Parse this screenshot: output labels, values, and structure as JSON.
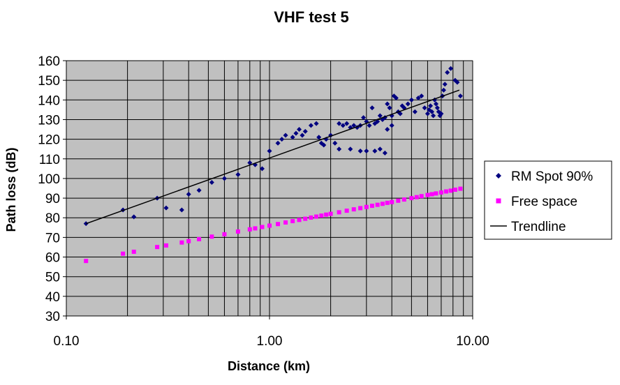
{
  "chart_data": {
    "type": "scatter",
    "title": "VHF test 5",
    "xlabel": "Distance (km)",
    "ylabel": "Path loss (dB)",
    "x_scale": "log",
    "xlim": [
      0.1,
      10
    ],
    "ylim": [
      30,
      160
    ],
    "x_ticks": [
      0.1,
      1,
      10
    ],
    "x_tick_labels": [
      "0.10",
      "1.00",
      "10.00"
    ],
    "y_ticks": [
      30,
      40,
      50,
      60,
      70,
      80,
      90,
      100,
      110,
      120,
      130,
      140,
      150,
      160
    ],
    "y_tick_labels": [
      "30",
      "40",
      "50",
      "60",
      "70",
      "80",
      "90",
      "100",
      "110",
      "120",
      "130",
      "140",
      "150",
      "160"
    ],
    "grid": true,
    "plot_background": "#c0c0c0",
    "legend_position": "right",
    "series": [
      {
        "name": "RM Spot 90%",
        "kind": "scatter",
        "marker": "diamond",
        "color": "#000080",
        "points": [
          [
            0.125,
            77
          ],
          [
            0.19,
            84
          ],
          [
            0.215,
            80.5
          ],
          [
            0.28,
            90
          ],
          [
            0.31,
            85
          ],
          [
            0.37,
            84
          ],
          [
            0.4,
            92
          ],
          [
            0.45,
            94
          ],
          [
            0.52,
            98
          ],
          [
            0.6,
            100
          ],
          [
            0.7,
            102
          ],
          [
            0.8,
            108
          ],
          [
            0.85,
            107
          ],
          [
            0.92,
            105
          ],
          [
            1.0,
            114
          ],
          [
            1.1,
            118
          ],
          [
            1.15,
            120
          ],
          [
            1.2,
            122
          ],
          [
            1.3,
            121
          ],
          [
            1.35,
            123
          ],
          [
            1.4,
            125
          ],
          [
            1.45,
            122
          ],
          [
            1.5,
            124
          ],
          [
            1.6,
            127
          ],
          [
            1.7,
            128
          ],
          [
            1.75,
            121
          ],
          [
            1.8,
            118
          ],
          [
            1.85,
            117
          ],
          [
            1.9,
            120
          ],
          [
            2.0,
            122
          ],
          [
            2.1,
            118
          ],
          [
            2.2,
            128
          ],
          [
            2.3,
            127
          ],
          [
            2.4,
            128
          ],
          [
            2.5,
            126
          ],
          [
            2.6,
            127
          ],
          [
            2.7,
            126
          ],
          [
            2.8,
            127
          ],
          [
            2.9,
            131
          ],
          [
            3.0,
            129
          ],
          [
            3.1,
            127
          ],
          [
            3.2,
            136
          ],
          [
            3.3,
            128
          ],
          [
            3.4,
            129
          ],
          [
            3.5,
            132
          ],
          [
            3.6,
            130
          ],
          [
            3.7,
            131
          ],
          [
            3.8,
            138
          ],
          [
            3.9,
            136
          ],
          [
            4.0,
            132
          ],
          [
            4.1,
            142
          ],
          [
            4.2,
            141
          ],
          [
            4.3,
            134
          ],
          [
            4.4,
            133
          ],
          [
            4.5,
            137
          ],
          [
            4.6,
            136
          ],
          [
            4.8,
            138
          ],
          [
            5.0,
            140
          ],
          [
            5.2,
            134
          ],
          [
            5.4,
            141
          ],
          [
            5.6,
            142
          ],
          [
            5.8,
            136
          ],
          [
            6.0,
            133
          ],
          [
            6.1,
            135
          ],
          [
            6.2,
            137
          ],
          [
            6.3,
            134
          ],
          [
            6.4,
            132
          ],
          [
            6.5,
            140
          ],
          [
            6.6,
            138
          ],
          [
            6.7,
            136
          ],
          [
            6.8,
            134
          ],
          [
            6.9,
            132
          ],
          [
            7.0,
            133
          ],
          [
            7.1,
            142
          ],
          [
            7.2,
            145
          ],
          [
            7.3,
            148
          ],
          [
            7.5,
            154
          ],
          [
            7.8,
            156
          ],
          [
            8.2,
            150
          ],
          [
            8.4,
            149
          ],
          [
            8.7,
            142
          ],
          [
            2.2,
            115
          ],
          [
            2.5,
            115
          ],
          [
            2.8,
            114
          ],
          [
            3.0,
            114
          ],
          [
            3.3,
            114
          ],
          [
            3.5,
            115
          ],
          [
            3.7,
            113
          ],
          [
            3.8,
            125
          ],
          [
            4.0,
            127
          ]
        ]
      },
      {
        "name": "Free space",
        "kind": "scatter",
        "marker": "square",
        "color": "#ff00ff",
        "points": [
          [
            0.125,
            58.0
          ],
          [
            0.19,
            61.7
          ],
          [
            0.215,
            62.7
          ],
          [
            0.28,
            65.1
          ],
          [
            0.31,
            65.9
          ],
          [
            0.37,
            67.4
          ],
          [
            0.4,
            68.1
          ],
          [
            0.45,
            69.1
          ],
          [
            0.52,
            70.4
          ],
          [
            0.6,
            71.6
          ],
          [
            0.7,
            73.0
          ],
          [
            0.8,
            74.1
          ],
          [
            0.85,
            74.6
          ],
          [
            0.92,
            75.3
          ],
          [
            1.0,
            76.0
          ],
          [
            1.1,
            76.8
          ],
          [
            1.2,
            77.6
          ],
          [
            1.3,
            78.3
          ],
          [
            1.4,
            78.9
          ],
          [
            1.5,
            79.5
          ],
          [
            1.6,
            80.1
          ],
          [
            1.7,
            80.6
          ],
          [
            1.8,
            81.1
          ],
          [
            1.9,
            81.6
          ],
          [
            2.0,
            82.0
          ],
          [
            2.2,
            82.8
          ],
          [
            2.4,
            83.6
          ],
          [
            2.6,
            84.3
          ],
          [
            2.8,
            84.9
          ],
          [
            3.0,
            85.5
          ],
          [
            3.2,
            86.1
          ],
          [
            3.4,
            86.6
          ],
          [
            3.6,
            87.1
          ],
          [
            3.8,
            87.6
          ],
          [
            4.0,
            88.0
          ],
          [
            4.3,
            88.7
          ],
          [
            4.6,
            89.3
          ],
          [
            5.0,
            90.0
          ],
          [
            5.3,
            90.5
          ],
          [
            5.6,
            91.0
          ],
          [
            6.0,
            91.6
          ],
          [
            6.3,
            92.0
          ],
          [
            6.6,
            92.4
          ],
          [
            7.0,
            92.9
          ],
          [
            7.4,
            93.4
          ],
          [
            7.8,
            93.8
          ],
          [
            8.2,
            94.3
          ],
          [
            8.7,
            94.8
          ]
        ]
      },
      {
        "name": "Trendline",
        "kind": "line",
        "color": "#000000",
        "points": [
          [
            0.125,
            77
          ],
          [
            8.6,
            145
          ]
        ]
      }
    ]
  }
}
